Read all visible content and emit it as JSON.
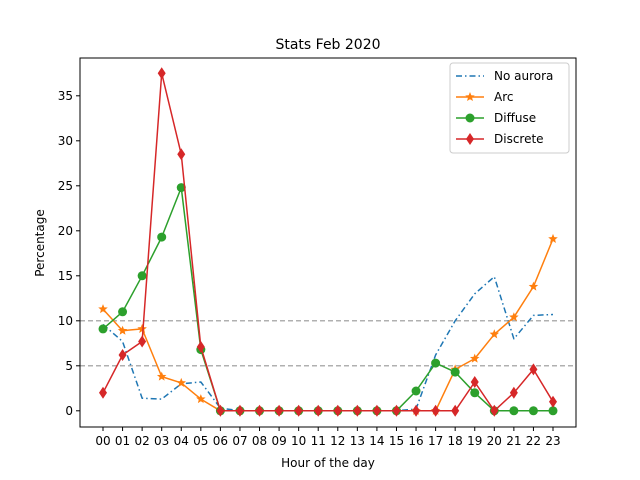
{
  "chart_data": {
    "type": "line",
    "title": "Stats Feb 2020",
    "xlabel": "Hour of the day",
    "ylabel": "Percentage",
    "categories": [
      "00",
      "01",
      "02",
      "03",
      "04",
      "05",
      "06",
      "07",
      "08",
      "09",
      "10",
      "11",
      "12",
      "13",
      "14",
      "15",
      "16",
      "17",
      "18",
      "19",
      "20",
      "21",
      "22",
      "23"
    ],
    "ylim": [
      -1.8,
      39.2
    ],
    "yticks": [
      0,
      5,
      10,
      15,
      20,
      25,
      30,
      35
    ],
    "reference_lines": [
      5,
      10
    ],
    "legend_position": "top-right",
    "series": [
      {
        "name": "No aurora",
        "color": "#1f77b4",
        "style": "dashdot",
        "marker": "none",
        "values": [
          9.6,
          7.7,
          1.4,
          1.3,
          3.0,
          3.2,
          0.3,
          0,
          0,
          0,
          0,
          0,
          0,
          0,
          0,
          0,
          0.2,
          6.2,
          10.0,
          13.0,
          14.9,
          8.0,
          10.6,
          10.7
        ]
      },
      {
        "name": "Arc",
        "color": "#ff7f0e",
        "style": "solid",
        "marker": "star",
        "values": [
          11.3,
          8.9,
          9.1,
          3.8,
          3.1,
          1.3,
          0,
          0,
          0,
          0,
          0,
          0,
          0,
          0,
          0,
          0,
          0,
          0,
          4.6,
          5.8,
          8.5,
          10.4,
          13.8,
          19.1
        ]
      },
      {
        "name": "Diffuse",
        "color": "#2ca02c",
        "style": "solid",
        "marker": "circle",
        "values": [
          9.1,
          11.0,
          15.0,
          19.3,
          24.8,
          6.8,
          0,
          0,
          0,
          0,
          0,
          0,
          0,
          0,
          0,
          0,
          2.2,
          5.3,
          4.3,
          2.0,
          0,
          0,
          0,
          0
        ]
      },
      {
        "name": "Discrete",
        "color": "#d62728",
        "style": "solid",
        "marker": "diamond",
        "values": [
          2.0,
          6.2,
          7.7,
          37.5,
          28.5,
          7.1,
          0,
          0,
          0,
          0,
          0,
          0,
          0,
          0,
          0,
          0,
          0,
          0,
          0,
          3.2,
          0,
          2.0,
          4.6,
          1.0
        ]
      }
    ]
  }
}
